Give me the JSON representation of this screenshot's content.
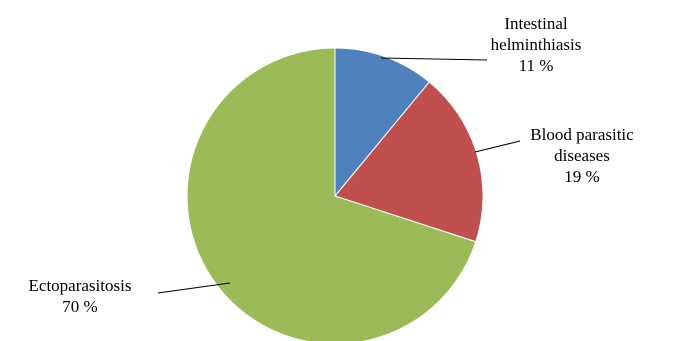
{
  "chart_data": {
    "type": "pie",
    "title": "",
    "start_angle_deg": 0,
    "direction": "clockwise",
    "slices": [
      {
        "label_lines": [
          "Intestinal",
          "helminthiasis"
        ],
        "value_label": "11 %",
        "value": 11,
        "color": "#4f81bd"
      },
      {
        "label_lines": [
          "Blood parasitic",
          "diseases"
        ],
        "value_label": "19 %",
        "value": 19,
        "color": "#c0504d"
      },
      {
        "label_lines": [
          "Ectoparasitosis"
        ],
        "value_label": "70 %",
        "value": 70,
        "color": "#9bbb59"
      }
    ],
    "legend": "none"
  }
}
